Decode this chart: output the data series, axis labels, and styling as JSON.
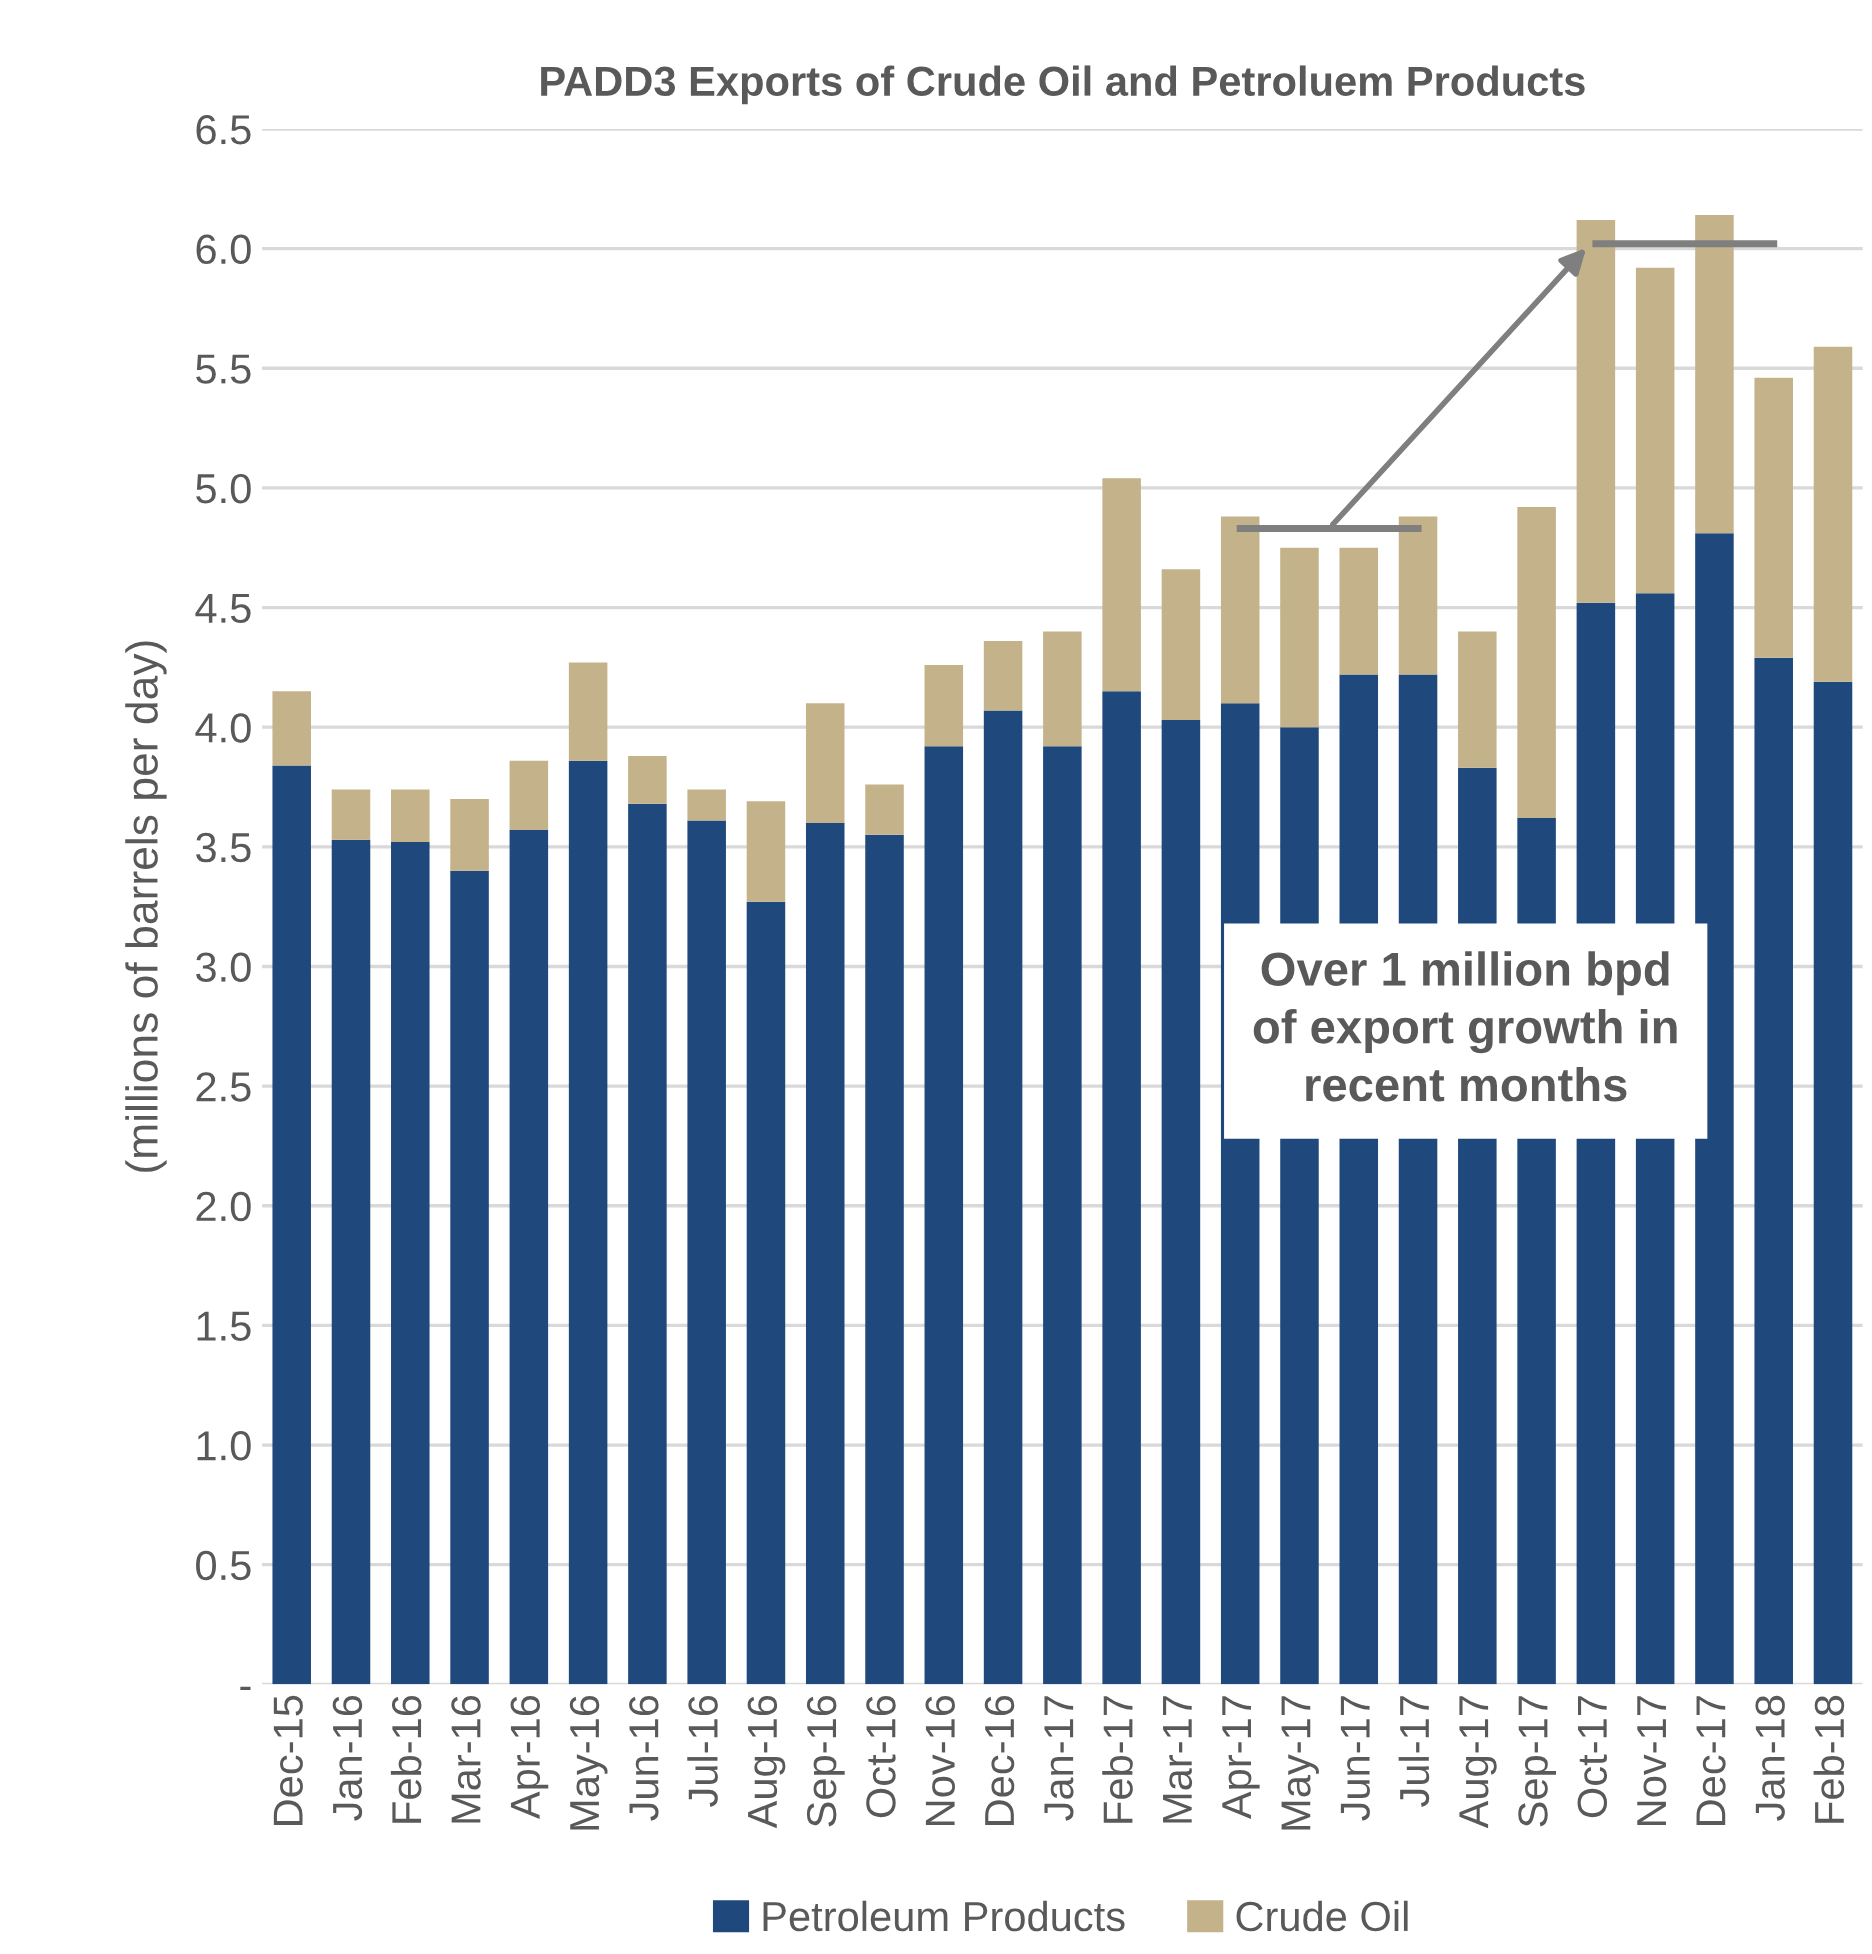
{
  "chart_data": {
    "type": "bar",
    "stacked": true,
    "title": "PADD3 Exports of Crude Oil and Petroluem Products",
    "ylabel": "(millions of barrels per day)",
    "categories": [
      "Dec-15",
      "Jan-16",
      "Feb-16",
      "Mar-16",
      "Apr-16",
      "May-16",
      "Jun-16",
      "Jul-16",
      "Aug-16",
      "Sep-16",
      "Oct-16",
      "Nov-16",
      "Dec-16",
      "Jan-17",
      "Feb-17",
      "Mar-17",
      "Apr-17",
      "May-17",
      "Jun-17",
      "Jul-17",
      "Aug-17",
      "Sep-17",
      "Oct-17",
      "Nov-17",
      "Dec-17",
      "Jan-18",
      "Feb-18"
    ],
    "series": [
      {
        "name": "Petroleum Products",
        "color": "#1f497d",
        "values": [
          3.84,
          3.53,
          3.52,
          3.4,
          3.57,
          3.86,
          3.68,
          3.61,
          3.27,
          3.6,
          3.55,
          3.92,
          4.07,
          3.92,
          4.15,
          4.03,
          4.1,
          4.0,
          4.22,
          4.22,
          3.83,
          3.62,
          4.52,
          4.56,
          4.81,
          4.29,
          4.19
        ]
      },
      {
        "name": "Crude Oil",
        "color": "#c4b38a",
        "values": [
          0.31,
          0.21,
          0.22,
          0.3,
          0.29,
          0.41,
          0.2,
          0.13,
          0.42,
          0.5,
          0.21,
          0.34,
          0.29,
          0.48,
          0.89,
          0.63,
          0.78,
          0.75,
          0.53,
          0.66,
          0.57,
          1.3,
          1.6,
          1.36,
          1.33,
          1.17,
          1.4
        ]
      },
      {
        "type": "line",
        "color": "#7f7f7f",
        "values": [
          null,
          null,
          null,
          null,
          null,
          null,
          null,
          null,
          null,
          null,
          null,
          null,
          null,
          null,
          null,
          null,
          4.83,
          4.83,
          4.83,
          4.83,
          null,
          null,
          null,
          null,
          null,
          null,
          null
        ]
      },
      {
        "type": "line",
        "color": "#7f7f7f",
        "values": [
          null,
          null,
          null,
          null,
          null,
          null,
          null,
          null,
          null,
          null,
          null,
          null,
          null,
          null,
          null,
          null,
          null,
          null,
          null,
          null,
          null,
          null,
          6.02,
          6.02,
          6.02,
          6.02,
          null
        ]
      }
    ],
    "ylim": [
      0,
      6.5
    ],
    "yticks": [
      {
        "value": 0,
        "label": "-"
      },
      {
        "value": 0.5,
        "label": "0.5"
      },
      {
        "value": 1,
        "label": "1.0"
      },
      {
        "value": 1.5,
        "label": "1.5"
      },
      {
        "value": 2,
        "label": "2.0"
      },
      {
        "value": 2.5,
        "label": "2.5"
      },
      {
        "value": 3,
        "label": "3.0"
      },
      {
        "value": 3.5,
        "label": "3.5"
      },
      {
        "value": 4,
        "label": "4.0"
      },
      {
        "value": 4.5,
        "label": "4.5"
      },
      {
        "value": 5,
        "label": "5.0"
      },
      {
        "value": 5.5,
        "label": "5.5"
      },
      {
        "value": 6,
        "label": "6.0"
      },
      {
        "value": 6.5,
        "label": "6.5"
      }
    ],
    "grid": "y",
    "legend": "bottom",
    "annotations": [
      "Over 1 million bpd\nof export growth in\nrecent months"
    ]
  }
}
